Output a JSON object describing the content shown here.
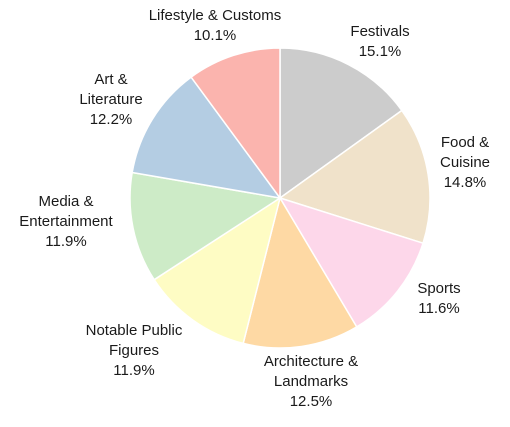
{
  "chart_data": {
    "type": "pie",
    "start_angle_deg": 0,
    "direction": "clockwise",
    "slices": [
      {
        "label": [
          "Festivals"
        ],
        "value_label": "15.1%",
        "value": 15.1,
        "color": "#cccccc"
      },
      {
        "label": [
          "Food &",
          "Cuisine"
        ],
        "value_label": "14.8%",
        "value": 14.8,
        "color": "#f0e2ca"
      },
      {
        "label": [
          "Sports"
        ],
        "value_label": "11.6%",
        "value": 11.6,
        "color": "#fdd7ea"
      },
      {
        "label": [
          "Architecture &",
          "Landmarks"
        ],
        "value_label": "12.5%",
        "value": 12.5,
        "color": "#fed9a4"
      },
      {
        "label": [
          "Notable Public",
          "Figures"
        ],
        "value_label": "11.9%",
        "value": 11.9,
        "color": "#fefcc4"
      },
      {
        "label": [
          "Media &",
          "Entertainment"
        ],
        "value_label": "11.9%",
        "value": 11.9,
        "color": "#cdebc7"
      },
      {
        "label": [
          "Art &",
          "Literature"
        ],
        "value_label": "12.2%",
        "value": 12.2,
        "color": "#b4cde3"
      },
      {
        "label": [
          "Lifestyle & Customs"
        ],
        "value_label": "10.1%",
        "value": 10.1,
        "color": "#fbb4ae"
      }
    ]
  }
}
